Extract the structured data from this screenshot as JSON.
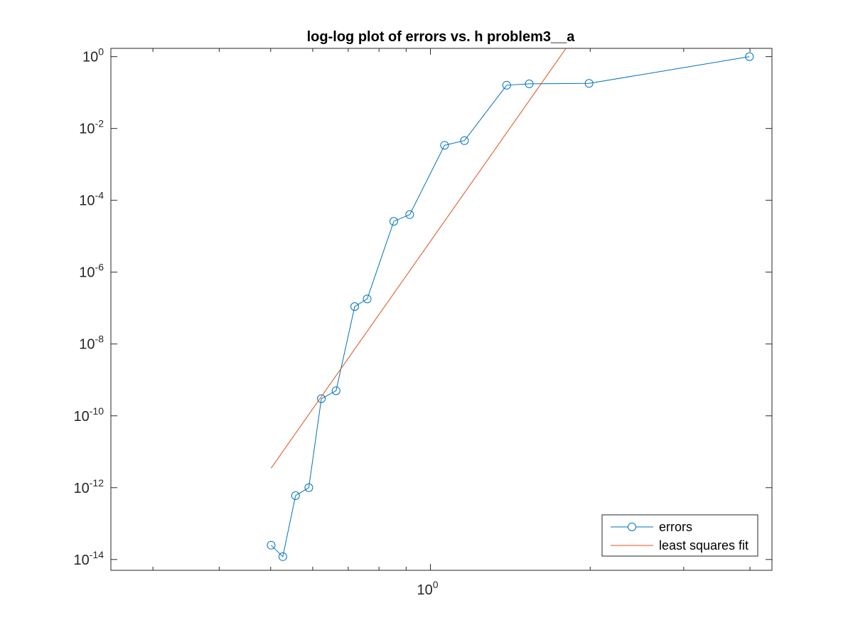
{
  "chart_data": {
    "type": "line",
    "title": "log-log plot of errors vs. h problem3__a",
    "xscale": "log",
    "yscale": "log",
    "xlim": [
      0.25,
      4.4
    ],
    "ylim": [
      5e-15,
      1.7
    ],
    "xticks": [
      {
        "value": 1,
        "label": "10",
        "exponent": "0"
      }
    ],
    "x_minor_ticks": [
      0.3,
      0.4,
      0.5,
      0.6,
      0.7,
      0.8,
      0.9,
      2,
      3,
      4
    ],
    "yticks": [
      {
        "value": 1e-14,
        "label": "10",
        "exponent": "-14"
      },
      {
        "value": 1e-12,
        "label": "10",
        "exponent": "-12"
      },
      {
        "value": 1e-10,
        "label": "10",
        "exponent": "-10"
      },
      {
        "value": 1e-08,
        "label": "10",
        "exponent": "-8"
      },
      {
        "value": 1e-06,
        "label": "10",
        "exponent": "-6"
      },
      {
        "value": 0.0001,
        "label": "10",
        "exponent": "-4"
      },
      {
        "value": 0.01,
        "label": "10",
        "exponent": "-2"
      },
      {
        "value": 1,
        "label": "10",
        "exponent": "0"
      }
    ],
    "grid": false,
    "legend_position": "bottom-right",
    "series": [
      {
        "name": "errors",
        "color": "#0072BD",
        "marker": "circle",
        "x": [
          0.501,
          0.527,
          0.557,
          0.59,
          0.623,
          0.664,
          0.72,
          0.76,
          0.853,
          0.914,
          1.063,
          1.159,
          1.392,
          1.535,
          1.99,
          3.99
        ],
        "y": [
          2.5e-14,
          1.2e-14,
          6e-13,
          1e-12,
          3e-10,
          5e-10,
          1.1e-07,
          1.8e-07,
          2.6e-05,
          4e-05,
          0.0034,
          0.0046,
          0.16,
          0.175,
          0.18,
          1.0
        ]
      },
      {
        "name": "least squares fit",
        "color": "#D95319",
        "marker": "none",
        "x": [
          0.501,
          1.8
        ],
        "y": [
          3.5e-12,
          1.7
        ]
      }
    ]
  }
}
